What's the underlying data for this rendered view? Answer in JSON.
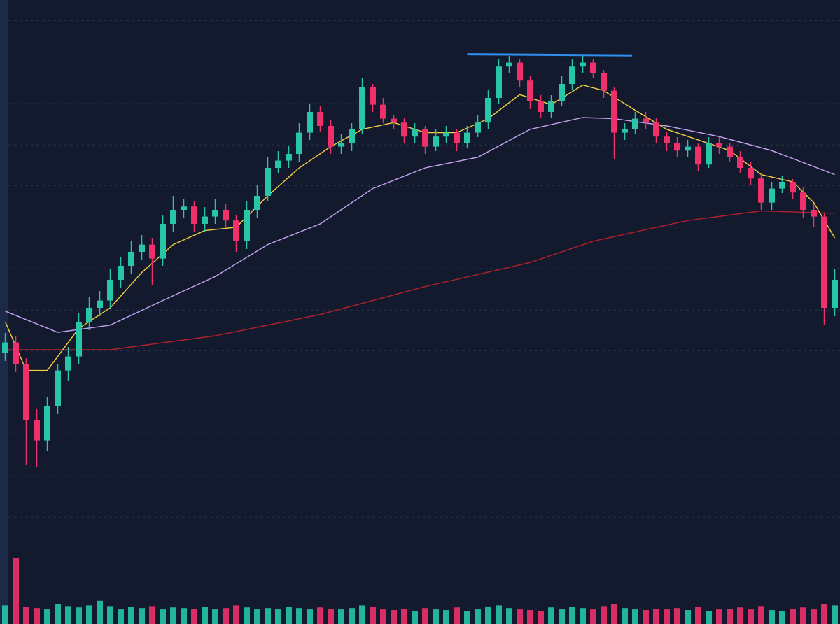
{
  "chart_data": {
    "type": "candlestick",
    "xlim": [
      -0.5,
      79.5
    ],
    "ylim": [
      0,
      100
    ],
    "yticks": [
      96.3,
      88.9,
      81.5,
      74.1,
      66.8,
      59.4,
      52,
      44.6,
      37.3,
      29.9,
      22.5,
      15,
      7.6
    ],
    "grid": true,
    "up_color": "#26c6a6",
    "down_color": "#f0306b",
    "open": [
      37,
      38.8,
      35,
      25,
      21.3,
      27.5,
      33.8,
      36.3,
      42.5,
      45,
      46.3,
      50,
      52.5,
      55,
      56.3,
      53.8,
      60,
      62.5,
      63.1,
      60,
      61.3,
      62.5,
      60.6,
      56.9,
      62.5,
      65,
      70,
      71.3,
      72.5,
      76.3,
      80,
      77.5,
      73.8,
      74.4,
      76.9,
      84.4,
      81.3,
      78.8,
      78.1,
      75.6,
      76.9,
      73.8,
      75.6,
      76.3,
      74.4,
      76.3,
      78.1,
      82.5,
      88.1,
      88.8,
      85.6,
      81.9,
      80,
      81.9,
      85,
      88.1,
      88.8,
      86.9,
      83.8,
      76.3,
      76.9,
      78.8,
      78.1,
      75.6,
      74.4,
      73.1,
      73.8,
      70.6,
      74.4,
      73.8,
      71.9,
      70,
      68.1,
      63.8,
      66.3,
      67.5,
      65.6,
      62.5,
      61.3,
      45
    ],
    "high": [
      40.5,
      40,
      36,
      27,
      29,
      35,
      38,
      44,
      47,
      48,
      52,
      54,
      57,
      58,
      57.5,
      61.5,
      65,
      64.5,
      64,
      63,
      64.5,
      63.5,
      61.5,
      64,
      67,
      72,
      73,
      74,
      78,
      81.5,
      81,
      78.5,
      76,
      78,
      86,
      85,
      82.5,
      79.5,
      79,
      78,
      77.5,
      77,
      77.5,
      77,
      77.5,
      79.5,
      84,
      89.5,
      90,
      89.5,
      86.5,
      83,
      83,
      86.5,
      89.5,
      90,
      89.5,
      87.5,
      84.5,
      78,
      80,
      80,
      79,
      76.5,
      75.5,
      75,
      74.5,
      75.5,
      75.5,
      74.5,
      73,
      71,
      69,
      67.5,
      68.5,
      68,
      66.5,
      63.5,
      62,
      52
    ],
    "low": [
      35.5,
      33.5,
      17,
      16.5,
      19.5,
      26,
      32,
      35,
      41,
      43.5,
      45,
      48.5,
      51,
      53.5,
      49,
      52.5,
      58.5,
      61,
      58.5,
      58.5,
      60,
      59.5,
      55,
      55.5,
      61,
      64,
      69,
      70,
      71,
      75,
      76.5,
      72.5,
      72.5,
      73,
      76,
      80,
      78,
      77,
      74.5,
      74.5,
      72.5,
      73,
      74.5,
      73,
      73.5,
      75.5,
      77,
      81.5,
      87,
      84.5,
      80.5,
      79,
      79,
      81,
      84,
      87,
      86,
      82.5,
      71.5,
      75,
      76,
      77,
      74.5,
      73,
      72,
      72,
      69.5,
      70,
      72.5,
      71,
      69,
      67,
      62.5,
      62.5,
      65.5,
      64.5,
      61,
      59.5,
      42,
      43.5
    ],
    "close": [
      38.8,
      35,
      25,
      21.3,
      27.5,
      33.8,
      36.3,
      42.5,
      45,
      46.3,
      50,
      52.5,
      55,
      56.3,
      53.8,
      60,
      62.5,
      63.1,
      60,
      61.3,
      62.5,
      60.6,
      56.9,
      62.5,
      65,
      70,
      71.3,
      72.5,
      76.3,
      80,
      77.5,
      73.8,
      74.4,
      76.9,
      84.4,
      81.3,
      78.8,
      78.1,
      75.6,
      76.9,
      73.8,
      75.6,
      76.3,
      74.4,
      76.3,
      78.1,
      82.5,
      88.1,
      88.8,
      85.6,
      81.9,
      80,
      81.9,
      85,
      88.1,
      88.8,
      86.9,
      83.8,
      76.3,
      76.9,
      78.8,
      78.1,
      75.6,
      74.4,
      73.1,
      73.8,
      70.6,
      74.4,
      73.8,
      71.9,
      70,
      68.1,
      63.8,
      66.3,
      67.5,
      65.6,
      62.5,
      61.3,
      45,
      50
    ],
    "volume": [
      28,
      100,
      26,
      24,
      22,
      30,
      27,
      25,
      28,
      35,
      27,
      22,
      26,
      24,
      27,
      22,
      25,
      24,
      23,
      26,
      22,
      24,
      28,
      25,
      22,
      24,
      23,
      26,
      24,
      22,
      25,
      23,
      22,
      24,
      28,
      26,
      22,
      21,
      23,
      20,
      24,
      22,
      21,
      25,
      20,
      23,
      26,
      28,
      24,
      22,
      21,
      20,
      25,
      23,
      26,
      24,
      22,
      27,
      30,
      24,
      22,
      21,
      23,
      22,
      24,
      21,
      26,
      20,
      22,
      23,
      25,
      22,
      27,
      21,
      20,
      23,
      25,
      22,
      30,
      28
    ],
    "volume_ylim": [
      0,
      100
    ],
    "lines": [
      {
        "color": "#b3202a",
        "x": [
          0,
          10,
          20,
          30,
          40,
          50,
          56,
          65,
          72,
          79
        ],
        "values": [
          37.5,
          37.5,
          40,
          43.8,
          48.8,
          53.1,
          56.9,
          60.6,
          62.3,
          61.9
        ]
      },
      {
        "color": "#c7a4f0",
        "x": [
          0,
          5,
          10,
          15,
          20,
          25,
          30,
          35,
          40,
          45,
          50,
          55,
          58,
          63,
          68,
          73,
          79
        ],
        "values": [
          44.4,
          40.6,
          41.9,
          46.3,
          50.6,
          56.3,
          60,
          66.3,
          70,
          71.9,
          76.9,
          79,
          78.8,
          77.5,
          75.6,
          73.1,
          68.8
        ]
      },
      {
        "color": "#f5d142",
        "x": [
          0,
          2,
          4,
          7,
          10,
          13,
          16,
          19,
          22,
          25,
          28,
          31,
          34,
          37,
          40,
          43,
          46,
          49,
          52,
          55,
          57,
          60,
          63,
          66,
          69,
          72,
          75,
          77,
          79
        ],
        "values": [
          42.5,
          33.8,
          33.8,
          41.3,
          45,
          51.3,
          56.3,
          58.8,
          59.4,
          65,
          70,
          73.8,
          76.9,
          78.1,
          76.3,
          76.3,
          78.8,
          83.1,
          81.3,
          84.8,
          83.8,
          80.3,
          76.9,
          75,
          73.1,
          68.8,
          67.5,
          63.8,
          57.5
        ]
      }
    ],
    "trendline": {
      "color": "#2f8ef0",
      "x": [
        44,
        59.7
      ],
      "values": [
        90.3,
        90.1
      ]
    }
  }
}
